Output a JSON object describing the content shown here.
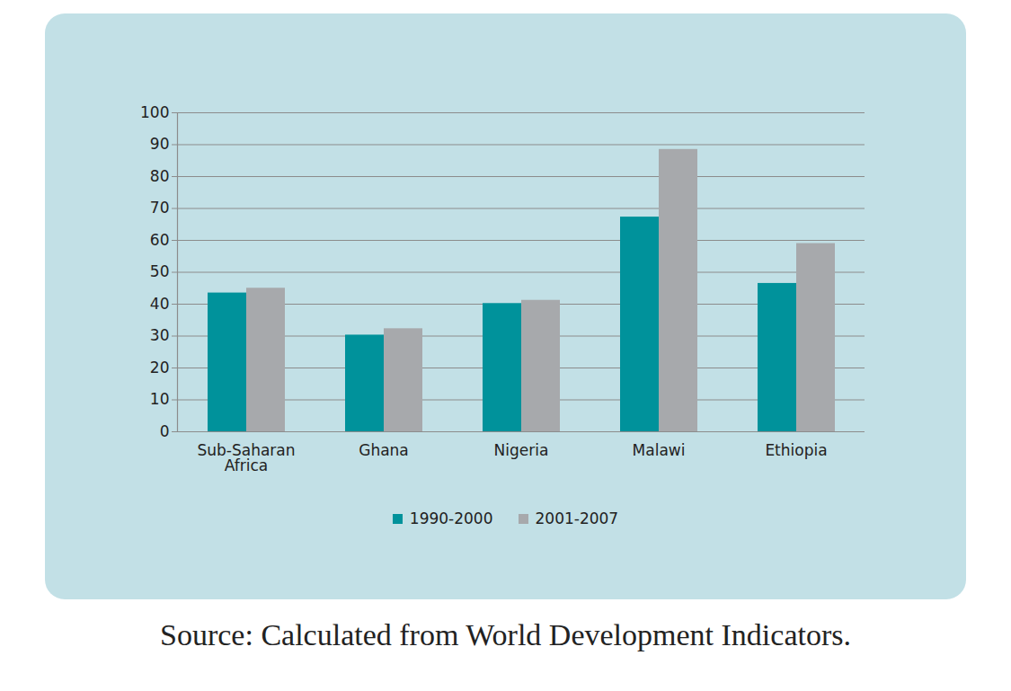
{
  "chart_data": {
    "type": "bar",
    "caption": "Source: Calculated from World Development Indicators.",
    "categories": [
      "Sub-Saharan Africa",
      "Ghana",
      "Nigeria",
      "Malawi",
      "Ethiopia"
    ],
    "series": [
      {
        "name": "1990-2000",
        "color": "#00929B",
        "values": [
          43.5,
          30.3,
          40.2,
          67.3,
          46.5
        ]
      },
      {
        "name": "2001-2007",
        "color": "#A7A9AC",
        "values": [
          45,
          32.3,
          41.2,
          88.5,
          59
        ]
      }
    ],
    "ylim": [
      0,
      100
    ],
    "yticks": [
      0,
      10,
      20,
      30,
      40,
      50,
      60,
      70,
      80,
      90,
      100
    ],
    "grid": true,
    "legend": "bottom"
  }
}
